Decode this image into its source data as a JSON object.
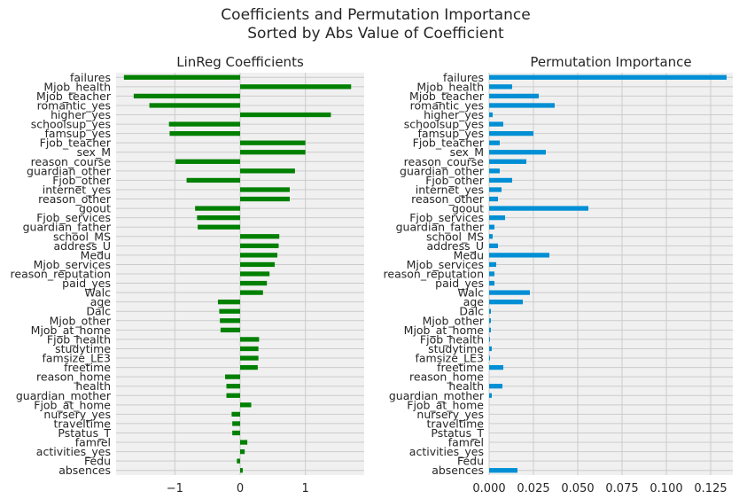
{
  "figure": {
    "title_line1": "Coefficients and Permutation Importance",
    "title_line2": "Sorted by Abs Value of Coefficient"
  },
  "chart_data": [
    {
      "type": "bar",
      "orientation": "horizontal",
      "title": "LinReg Coefficients",
      "bar_color": "#008000",
      "xlim": [
        -1.9,
        1.9
      ],
      "xticks": [
        -1,
        0,
        1
      ],
      "xtick_labels": [
        "−1",
        "0",
        "1"
      ],
      "grid": true,
      "categories": [
        "failures",
        "Mjob_health",
        "Mjob_teacher",
        "romantic_yes",
        "higher_yes",
        "schoolsup_yes",
        "famsup_yes",
        "Fjob_teacher",
        "sex_M",
        "reason_course",
        "guardian_other",
        "Fjob_other",
        "internet_yes",
        "reason_other",
        "goout",
        "Fjob_services",
        "guardian_father",
        "school_MS",
        "address_U",
        "Medu",
        "Mjob_services",
        "reason_reputation",
        "paid_yes",
        "Walc",
        "age",
        "Dalc",
        "Mjob_other",
        "Mjob_at_home",
        "Fjob_health",
        "studytime",
        "famsize_LE3",
        "freetime",
        "reason_home",
        "health",
        "guardian_mother",
        "Fjob_at_home",
        "nursery_yes",
        "traveltime",
        "Pstatus_T",
        "famrel",
        "activities_yes",
        "Fedu",
        "absences"
      ],
      "values": [
        -1.78,
        1.7,
        -1.63,
        -1.39,
        1.39,
        -1.09,
        -1.08,
        1.0,
        1.0,
        -0.99,
        0.84,
        -0.82,
        0.76,
        0.76,
        -0.69,
        -0.66,
        -0.65,
        0.6,
        0.59,
        0.57,
        0.53,
        0.45,
        0.41,
        0.35,
        -0.34,
        -0.32,
        -0.31,
        -0.3,
        0.29,
        0.28,
        0.28,
        0.27,
        -0.23,
        -0.21,
        -0.21,
        0.17,
        -0.13,
        -0.12,
        -0.12,
        0.11,
        0.07,
        -0.05,
        0.04
      ]
    },
    {
      "type": "bar",
      "orientation": "horizontal",
      "title": "Permutation Importance",
      "bar_color": "#008fd5",
      "xlim": [
        0.0,
        0.1375
      ],
      "xticks": [
        0.0,
        0.025,
        0.05,
        0.075,
        0.1,
        0.125
      ],
      "xtick_labels": [
        "0.000",
        "0.025",
        "0.050",
        "0.075",
        "0.100",
        "0.125"
      ],
      "grid": true,
      "categories": [
        "failures",
        "Mjob_health",
        "Mjob_teacher",
        "romantic_yes",
        "higher_yes",
        "schoolsup_yes",
        "famsup_yes",
        "Fjob_teacher",
        "sex_M",
        "reason_course",
        "guardian_other",
        "Fjob_other",
        "internet_yes",
        "reason_other",
        "goout",
        "Fjob_services",
        "guardian_father",
        "school_MS",
        "address_U",
        "Medu",
        "Mjob_services",
        "reason_reputation",
        "paid_yes",
        "Walc",
        "age",
        "Dalc",
        "Mjob_other",
        "Mjob_at_home",
        "Fjob_health",
        "studytime",
        "famsize_LE3",
        "freetime",
        "reason_home",
        "health",
        "guardian_mother",
        "Fjob_at_home",
        "nursery_yes",
        "traveltime",
        "Pstatus_T",
        "famrel",
        "activities_yes",
        "Fedu",
        "absences"
      ],
      "values": [
        0.134,
        0.013,
        0.028,
        0.037,
        0.002,
        0.008,
        0.025,
        0.006,
        0.032,
        0.021,
        0.006,
        0.013,
        0.007,
        0.005,
        0.056,
        0.009,
        0.003,
        0.002,
        0.005,
        0.034,
        0.004,
        0.003,
        0.003,
        0.023,
        0.019,
        0.001,
        0.001,
        0.001,
        0.0005,
        0.0015,
        0.0005,
        0.008,
        0.0,
        0.0075,
        0.0015,
        0.0,
        0.0,
        0.0,
        0.0,
        0.0,
        0.0,
        0.0,
        0.016
      ]
    }
  ]
}
